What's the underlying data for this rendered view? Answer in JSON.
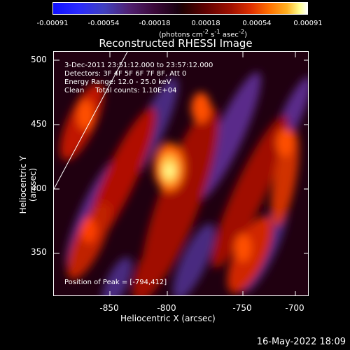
{
  "colorbar": {
    "ticks": [
      "-0.00091",
      "-0.00054",
      "-0.00018",
      "0.00018",
      "0.00054",
      "0.00091"
    ],
    "units_prefix": "(photons cm",
    "units_sup1": "-2",
    "units_mid": " s",
    "units_sup2": "-1",
    "units_mid2": " asec",
    "units_sup3": "-2",
    "units_suffix": ")"
  },
  "plot": {
    "title": "Reconstructed RHESSI Image",
    "time_range": "3-Dec-2011 23:51:12.000 to 23:57:12.000",
    "detectors": "Detectors: 3F 4F 5F 6F 7F 8F, Att 0",
    "energy": "Energy Range: 12.0 - 25.0 keV",
    "clean": "Clean     Total counts: 1.10E+04",
    "peak": "Position of Peak = [-794,412]",
    "ylabel": "Heliocentric Y (arcsec)",
    "xlabel": "Heliocentric X (arcsec)",
    "yticks": [
      "500",
      "450",
      "400",
      "350"
    ],
    "xticks": [
      "-850",
      "-800",
      "-750",
      "-700"
    ]
  },
  "footer": {
    "timestamp": "16-May-2022 18:09"
  }
}
